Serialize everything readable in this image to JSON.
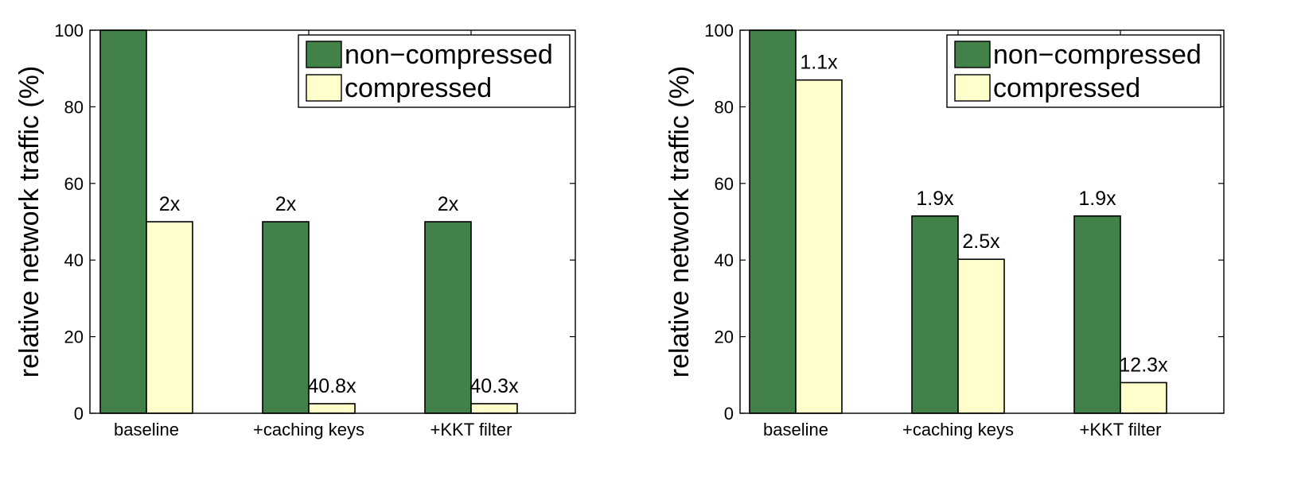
{
  "colors": {
    "non_compressed": "#428249",
    "compressed": "#FFFFCC"
  },
  "chart_data": [
    {
      "type": "bar",
      "title": "",
      "xlabel": "",
      "ylabel": "relative network traffic (%)",
      "ylim": [
        0,
        100
      ],
      "yticks": [
        0,
        20,
        40,
        60,
        80,
        100
      ],
      "categories": [
        "baseline",
        "+caching keys",
        "+KKT filter"
      ],
      "legend": [
        "non−compressed",
        "compressed"
      ],
      "legend_position": "top-right",
      "series": [
        {
          "name": "non−compressed",
          "values": [
            100,
            50,
            50
          ],
          "labels": [
            "",
            "2x",
            "2x"
          ]
        },
        {
          "name": "compressed",
          "values": [
            50,
            2.5,
            2.5
          ],
          "labels": [
            "2x",
            "40.8x",
            "40.3x"
          ]
        }
      ]
    },
    {
      "type": "bar",
      "title": "",
      "xlabel": "",
      "ylabel": "relative network traffic (%)",
      "ylim": [
        0,
        100
      ],
      "yticks": [
        0,
        20,
        40,
        60,
        80,
        100
      ],
      "categories": [
        "baseline",
        "+caching keys",
        "+KKT filter"
      ],
      "legend": [
        "non−compressed",
        "compressed"
      ],
      "legend_position": "top-right",
      "series": [
        {
          "name": "non−compressed",
          "values": [
            100,
            51.5,
            51.5
          ],
          "labels": [
            "",
            "1.9x",
            "1.9x"
          ]
        },
        {
          "name": "compressed",
          "values": [
            87,
            40.2,
            8
          ],
          "labels": [
            "1.1x",
            "2.5x",
            "12.3x"
          ]
        }
      ]
    }
  ]
}
